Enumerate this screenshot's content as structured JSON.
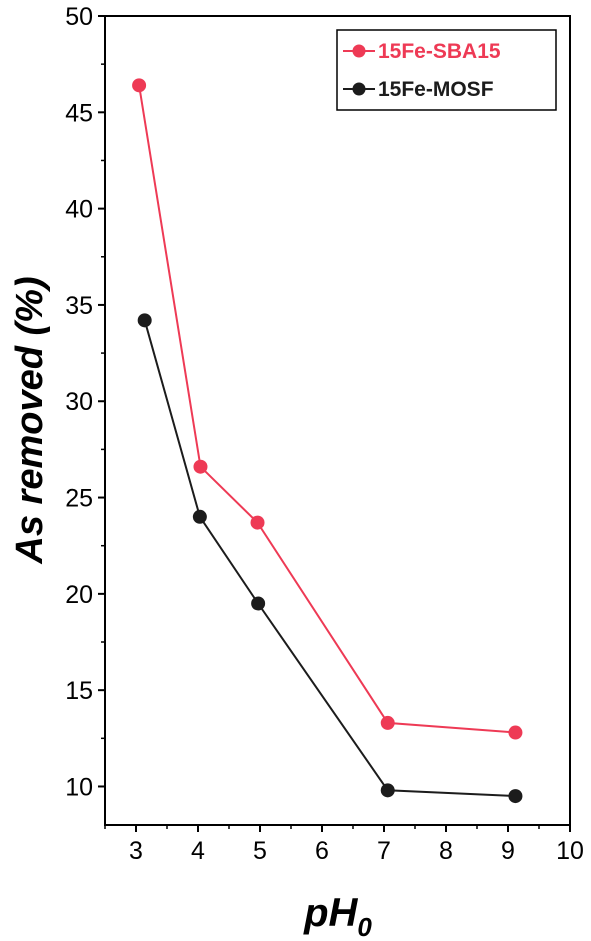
{
  "chart_data": {
    "type": "line",
    "xlabel": "pH",
    "xlabel_subscript": "0",
    "ylabel": "As removed (%)",
    "xlim": [
      2.5,
      10
    ],
    "ylim": [
      8,
      50
    ],
    "xticks": [
      3,
      4,
      5,
      6,
      7,
      8,
      9,
      10
    ],
    "yticks": [
      10,
      15,
      20,
      25,
      30,
      35,
      40,
      45,
      50
    ],
    "grid": false,
    "legend": "top-right",
    "series": [
      {
        "name": "15Fe-SBA15",
        "color": "#ee3a55",
        "x": [
          3.05,
          4.04,
          4.96,
          7.06,
          9.12
        ],
        "y": [
          46.4,
          26.6,
          23.7,
          13.3,
          12.8
        ]
      },
      {
        "name": "15Fe-MOSF",
        "color": "#1c1c1c",
        "x": [
          3.14,
          4.03,
          4.97,
          7.06,
          9.12
        ],
        "y": [
          34.2,
          24.0,
          19.5,
          9.8,
          9.5
        ]
      }
    ]
  }
}
